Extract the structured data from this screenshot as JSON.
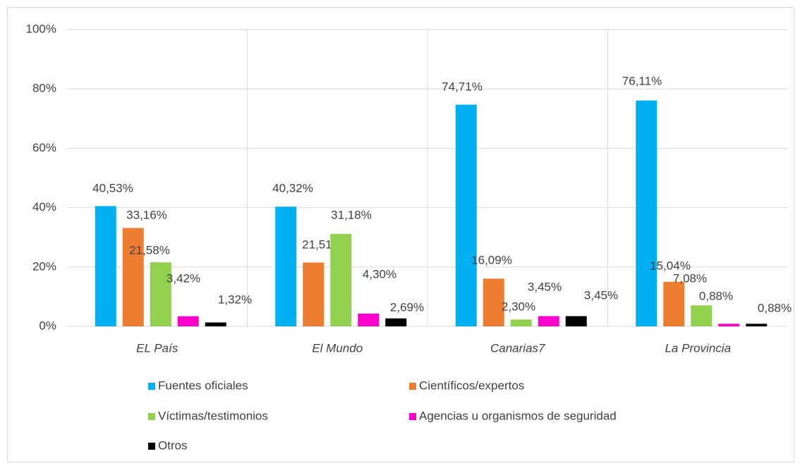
{
  "chart_data": {
    "type": "bar",
    "categories": [
      "EL País",
      "El Mundo",
      "Canarias7",
      "La Provincia"
    ],
    "series": [
      {
        "name": "Fuentes oficiales",
        "color": "#00b0f0",
        "values": [
          40.53,
          40.32,
          74.71,
          76.11
        ],
        "value_labels": [
          "40,53%",
          "40,32%",
          "74,71%",
          "76,11%"
        ]
      },
      {
        "name": "Científicos/expertos",
        "color": "#ed7d31",
        "values": [
          33.16,
          21.51,
          16.09,
          15.04
        ],
        "value_labels": [
          "33,16%",
          "21,51%",
          "16,09%",
          "15,04%"
        ]
      },
      {
        "name": "Víctimas/testimonios",
        "color": "#92d050",
        "values": [
          21.58,
          31.18,
          2.3,
          7.08
        ],
        "value_labels": [
          "21,58%",
          "31,18%",
          "2,30%",
          "7,08%"
        ]
      },
      {
        "name": "Agencias u organismos de seguridad",
        "color": "#ff00cc",
        "values": [
          3.42,
          4.3,
          3.45,
          0.88
        ],
        "value_labels": [
          "3,42%",
          "4,30%",
          "3,45%",
          "0,88%"
        ]
      },
      {
        "name": "Otros",
        "color": "#000000",
        "values": [
          1.32,
          2.69,
          3.45,
          0.88
        ],
        "value_labels": [
          "1,32%",
          "2,69%",
          "3,45%",
          "0,88%"
        ]
      }
    ],
    "ylim": [
      0,
      100
    ],
    "yticks": [
      {
        "value": 0,
        "label": "0%"
      },
      {
        "value": 20,
        "label": "20%"
      },
      {
        "value": 40,
        "label": "40%"
      },
      {
        "value": 60,
        "label": "60%"
      },
      {
        "value": 80,
        "label": "80%"
      },
      {
        "value": 100,
        "label": "100%"
      }
    ],
    "grid": true,
    "legend": "bottom"
  }
}
